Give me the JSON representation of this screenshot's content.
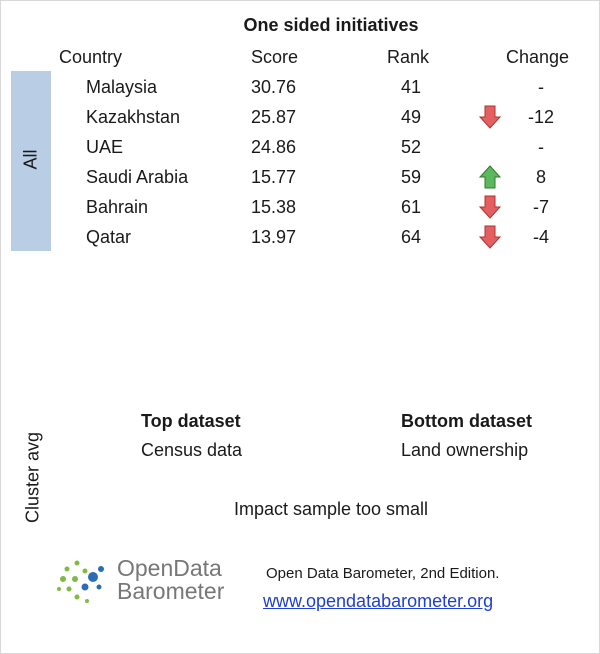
{
  "title": "One sided initiatives",
  "table": {
    "header": [
      "Country",
      "Score",
      "Rank",
      "Change"
    ],
    "rows": [
      [
        "Malaysia",
        30.76,
        41,
        "-"
      ],
      [
        "Kazakhstan",
        25.87,
        49,
        -12
      ],
      [
        "UAE",
        24.86,
        52,
        "-"
      ],
      [
        "Saudi Arabia",
        15.77,
        59,
        8
      ],
      [
        "Bahrain",
        15.38,
        61,
        -7
      ],
      [
        "Qatar",
        13.97,
        64,
        -4
      ]
    ],
    "group_label": "All"
  },
  "cluster": {
    "label": "Cluster avg",
    "top_heading": "Top dataset",
    "top_value": "Census data",
    "bottom_heading": "Bottom dataset",
    "bottom_value": "Land ownership",
    "note": "Impact sample too small"
  },
  "footer": {
    "logo_line1": "OpenData",
    "logo_line2": "Barometer",
    "edition": "Open Data Barometer, 2nd Edition.",
    "link": "www.opendatabarometer.org"
  }
}
